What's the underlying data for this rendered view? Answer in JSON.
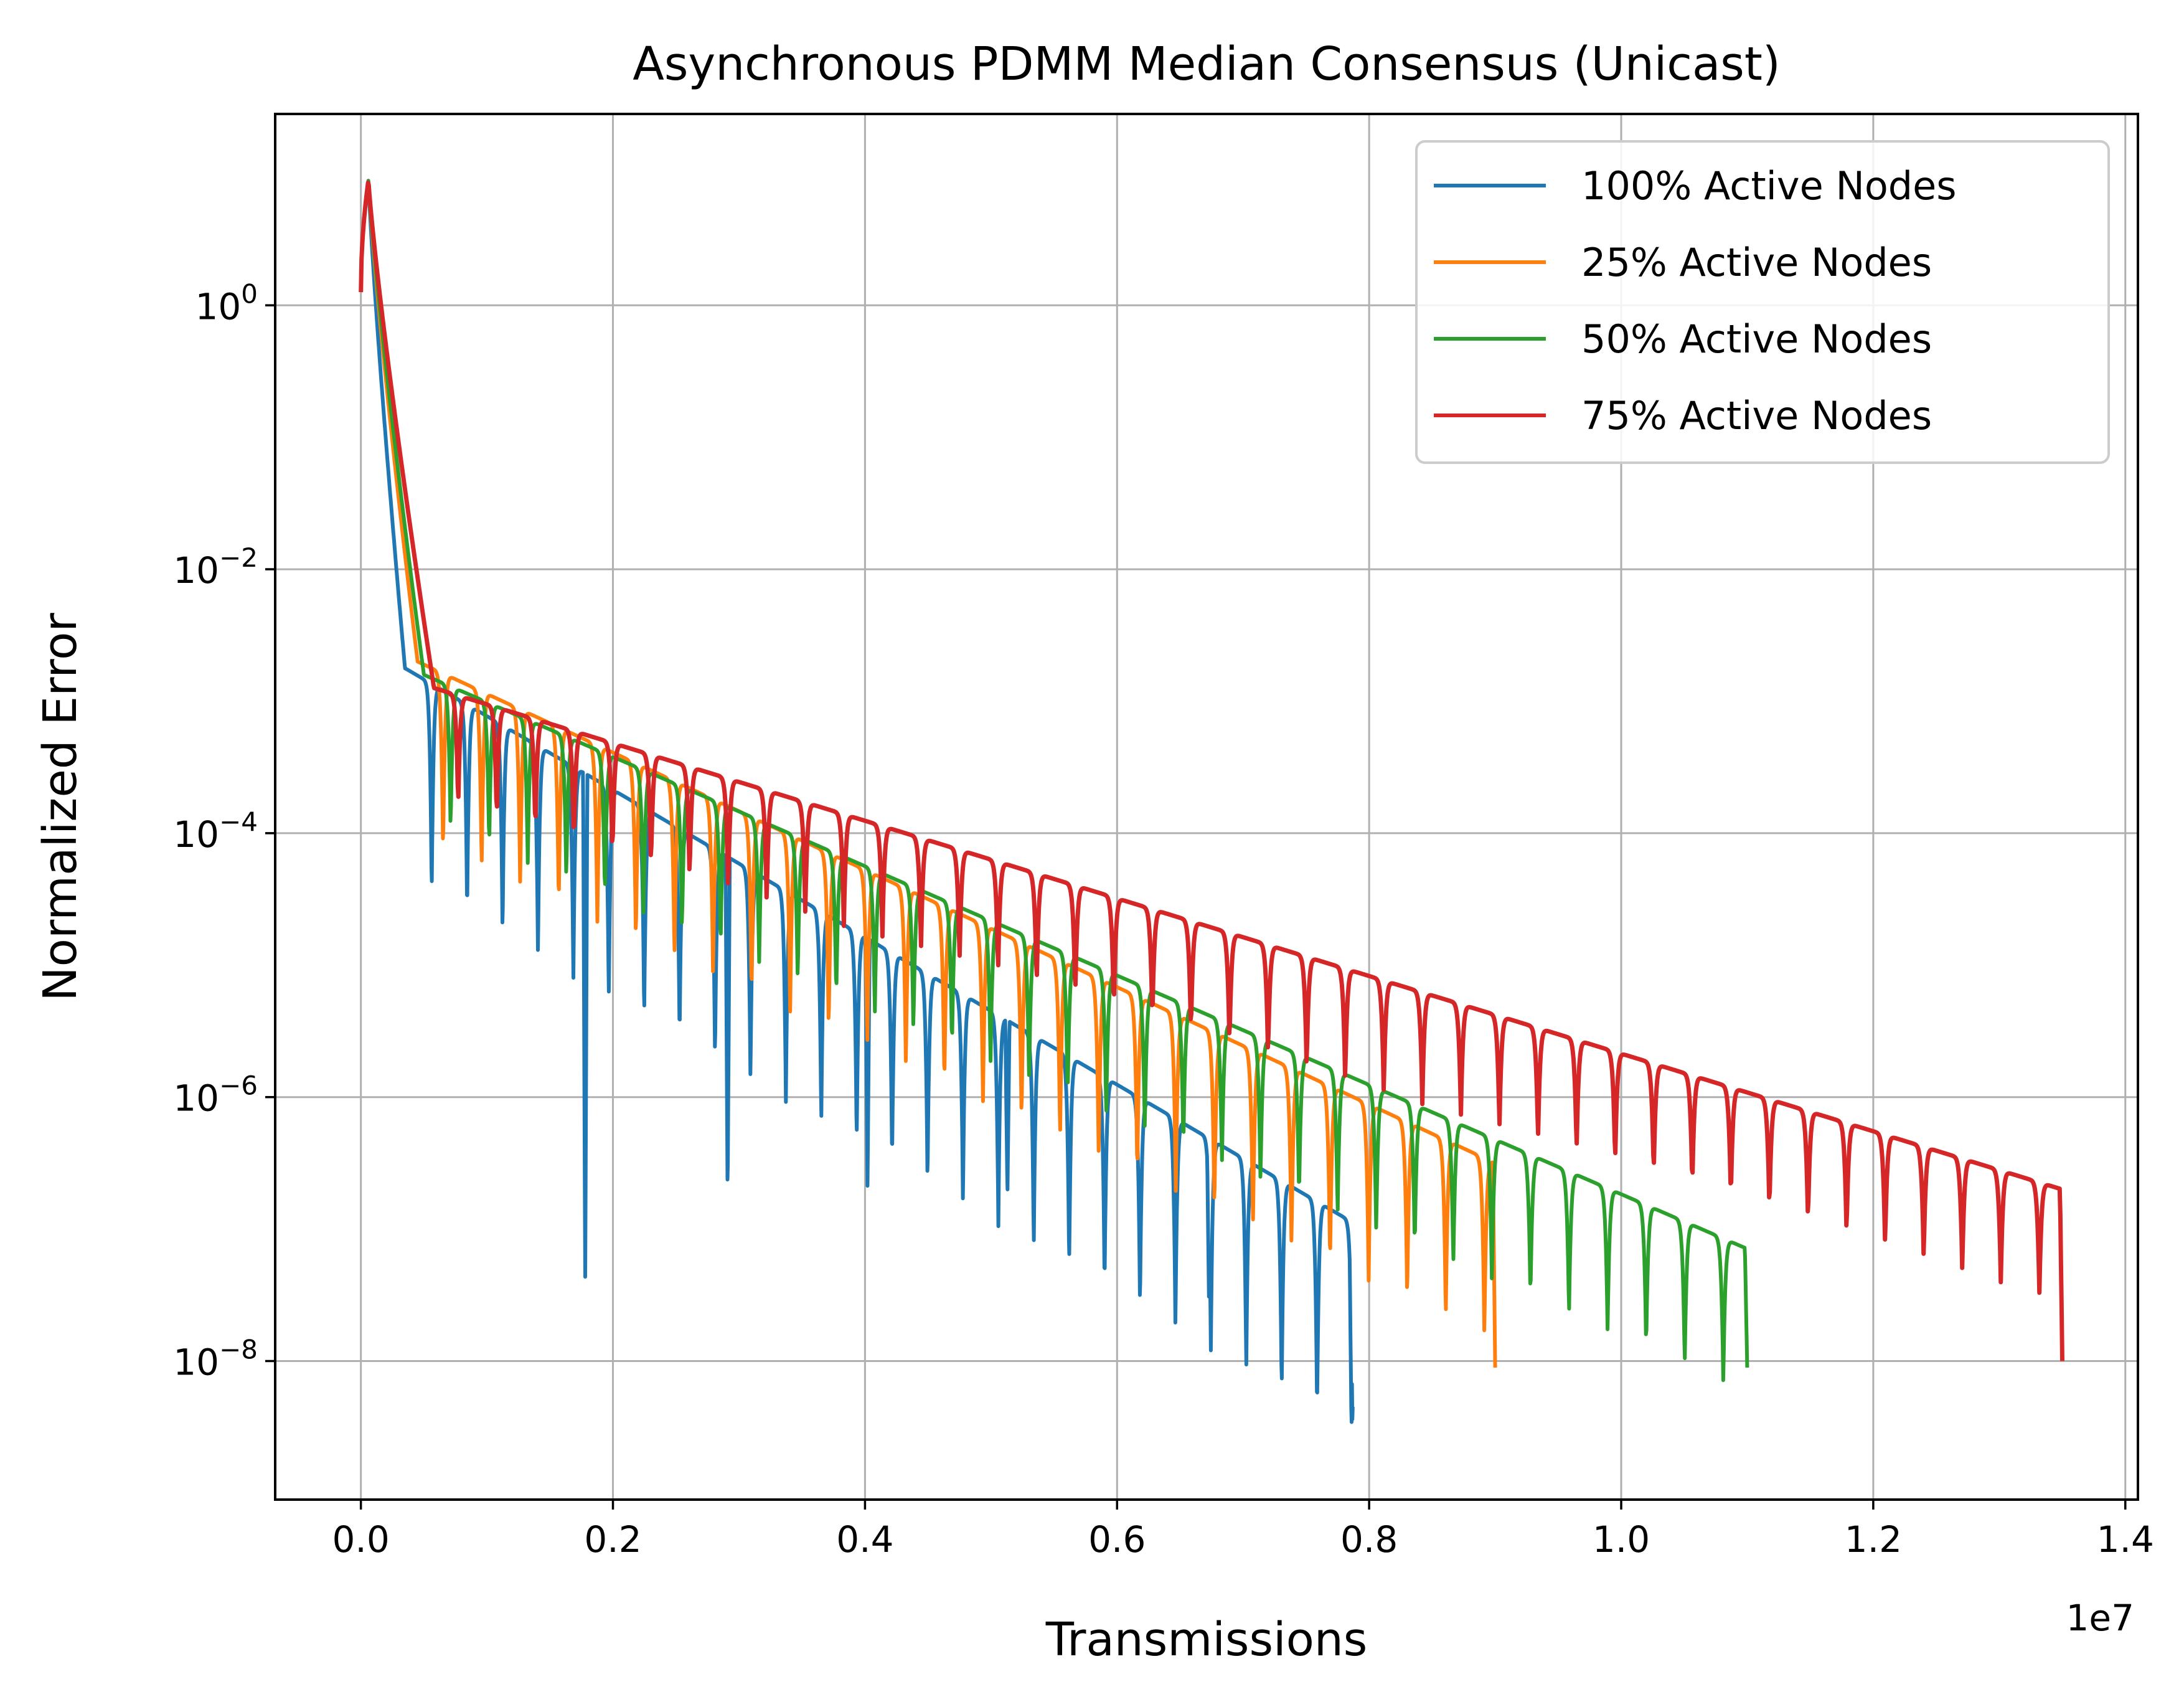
{
  "chart_data": {
    "type": "line",
    "title": "Asynchronous PDMM Median Consensus (Unicast)",
    "xlabel": "Transmissions",
    "ylabel": "Normalized Error",
    "x_offset_text": "1e7",
    "xlim": [
      -0.068,
      1.41
    ],
    "x_scale_factor": 10000000,
    "yscale": "log",
    "ylim_exp": [
      -9.05,
      1.45
    ],
    "x_ticks": [
      0.0,
      0.2,
      0.4,
      0.6,
      0.8,
      1.0,
      1.2,
      1.4
    ],
    "x_tick_labels": [
      "0.0",
      "0.2",
      "0.4",
      "0.6",
      "0.8",
      "1.0",
      "1.2",
      "1.4"
    ],
    "y_ticks": [
      {
        "exp": 0,
        "base": "10",
        "sup": "0"
      },
      {
        "exp": -2,
        "base": "10",
        "sup": "−2"
      },
      {
        "exp": -4,
        "base": "10",
        "sup": "−4"
      },
      {
        "exp": -6,
        "base": "10",
        "sup": "−6"
      },
      {
        "exp": -8,
        "base": "10",
        "sup": "−8"
      }
    ],
    "grid": true,
    "legend_position": "top-right",
    "series": [
      {
        "name": "100% Active Nodes",
        "color": "#1f77b4",
        "x_end": 0.787,
        "period": 0.0281,
        "start_exp": 0.1,
        "peak_exp": 0.95,
        "knee_x": 0.035,
        "knee_exp": -2.75,
        "final_peak_exp": -6.95,
        "dip_depth": 1.6,
        "phase": 0.0,
        "notable_dips": [
          [
            0.178,
            -7.4
          ],
          [
            0.291,
            -6.8
          ],
          [
            0.402,
            -6.7
          ],
          [
            0.513,
            -6.75
          ],
          [
            0.673,
            -7.6
          ],
          [
            0.786,
            -8.55
          ]
        ]
      },
      {
        "name": "25% Active Nodes",
        "color": "#ff7f0e",
        "x_end": 0.9,
        "period": 0.0306,
        "start_exp": 0.1,
        "peak_exp": 0.95,
        "knee_x": 0.045,
        "knee_exp": -2.7,
        "final_peak_exp": -6.5,
        "dip_depth": 1.35,
        "phase": 0.004,
        "notable_dips": [
          [
            0.9,
            -8.05
          ]
        ]
      },
      {
        "name": "50% Active Nodes",
        "color": "#2ca02c",
        "x_end": 1.1,
        "period": 0.0306,
        "start_exp": 0.1,
        "peak_exp": 0.95,
        "knee_x": 0.05,
        "knee_exp": -2.8,
        "final_peak_exp": -7.15,
        "dip_depth": 1.1,
        "phase": 0.01,
        "notable_dips": [
          [
            1.1,
            -8.05
          ]
        ]
      },
      {
        "name": "75% Active Nodes",
        "color": "#d62728",
        "x_end": 1.35,
        "period": 0.0306,
        "start_exp": 0.1,
        "peak_exp": 0.95,
        "knee_x": 0.058,
        "knee_exp": -2.9,
        "final_peak_exp": -6.7,
        "dip_depth": 0.85,
        "phase": 0.016,
        "notable_dips": [
          [
            1.35,
            -8.0
          ]
        ]
      }
    ]
  }
}
